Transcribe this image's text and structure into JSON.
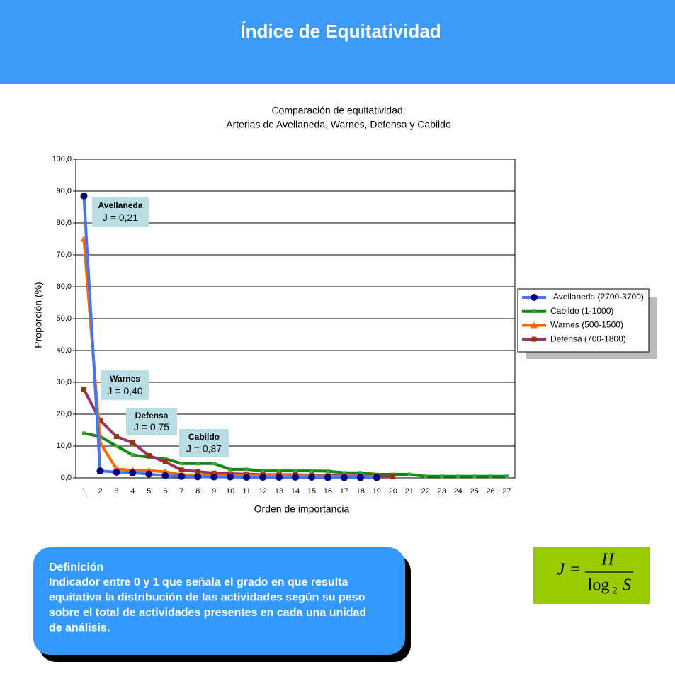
{
  "header": {
    "title": "Índice de Equitatividad"
  },
  "chart_data": {
    "type": "line",
    "title": [
      "Comparación de equitatividad:",
      "Arterias de Avellaneda, Warnes, Defensa y Cabildo"
    ],
    "x_label": "Orden de importancia",
    "y_label": "Proporción (%)",
    "categories": [
      "1",
      "2",
      "3",
      "4",
      "5",
      "6",
      "7",
      "8",
      "9",
      "10",
      "11",
      "12",
      "13",
      "14",
      "15",
      "16",
      "17",
      "18",
      "19",
      "20",
      "21",
      "22",
      "23",
      "24",
      "25",
      "26",
      "27"
    ],
    "ylim": [
      0,
      100
    ],
    "yticks": [
      {
        "value": 0,
        "label": "0,0"
      },
      {
        "value": 10,
        "label": "10,0"
      },
      {
        "value": 20,
        "label": "20,0"
      },
      {
        "value": 30,
        "label": "30,0"
      },
      {
        "value": 40,
        "label": "40,0"
      },
      {
        "value": 50,
        "label": "50,0"
      },
      {
        "value": 60,
        "label": "60,0"
      },
      {
        "value": 70,
        "label": "70,0"
      },
      {
        "value": 80,
        "label": "80,0"
      },
      {
        "value": 90,
        "label": "90,0"
      },
      {
        "value": 100,
        "label": "100,0"
      }
    ],
    "grid": true,
    "legend": "right",
    "series": [
      {
        "name": "Avellaneda (2700-3700)",
        "color": "#4477ee",
        "marker_color": "#000080",
        "marker": "circle",
        "values": [
          88.5,
          2.2,
          1.8,
          1.6,
          1.2,
          0.7,
          0.5,
          0.4,
          0.3,
          0.3,
          0.2,
          0.2,
          0.2,
          0.2,
          0.2,
          0.1,
          0.1,
          0.1,
          0.1,
          null,
          null,
          null,
          null,
          null,
          null,
          null,
          null
        ]
      },
      {
        "name": "Cabildo (1-1000)",
        "color": "#118811",
        "marker_color": "#33aa33",
        "marker": "square",
        "values": [
          14,
          13,
          10,
          7.2,
          6.5,
          6,
          4.5,
          4.5,
          4.5,
          2.7,
          2.7,
          2.2,
          2.2,
          2.2,
          2.2,
          2.1,
          1.6,
          1.6,
          1.1,
          1.1,
          1.1,
          0.5,
          0.5,
          0.5,
          0.5,
          0.5,
          0.5
        ]
      },
      {
        "name": "Warnes (500-1500)",
        "color": "#ff6600",
        "marker_color": "#ff6600",
        "marker": "triangle",
        "values": [
          75,
          11,
          2.8,
          2.4,
          2.3,
          1.9,
          1.0,
          0.9,
          0.8,
          0.8,
          0.8,
          0.7,
          0.7,
          0.6,
          0.6,
          0.5,
          0.4,
          0.4,
          0.4,
          null,
          null,
          null,
          null,
          null,
          null,
          null,
          null
        ]
      },
      {
        "name": "Defensa (700-1800)",
        "color": "#993366",
        "marker_color": "#993300",
        "marker": "square",
        "values": [
          27.8,
          18,
          13,
          11,
          7,
          5,
          2.5,
          2,
          1.5,
          1.3,
          1.2,
          1,
          1,
          1,
          0.9,
          0.7,
          0.6,
          0.6,
          0.5,
          0.4,
          null,
          null,
          null,
          null,
          null,
          null,
          null
        ]
      }
    ],
    "annotations": [
      {
        "title": "Avellaneda",
        "text": "J = 0,21"
      },
      {
        "title": "Warnes",
        "text": "J = 0,40"
      },
      {
        "title": "Defensa",
        "text": "J = 0,75"
      },
      {
        "title": "Cabildo",
        "text": "J = 0,87"
      }
    ]
  },
  "definition": {
    "title": "Definición",
    "lines": [
      "Indicador entre 0 y 1 que señala el grado en que resulta",
      "equitativa la distribución de las actividades según su peso",
      "sobre el total de actividades presentes en cada una unidad",
      "de análisis."
    ]
  },
  "formula": {
    "lhs": "J",
    "eq": "=",
    "num": "H",
    "log": "log",
    "base": "2",
    "arg": "S"
  }
}
